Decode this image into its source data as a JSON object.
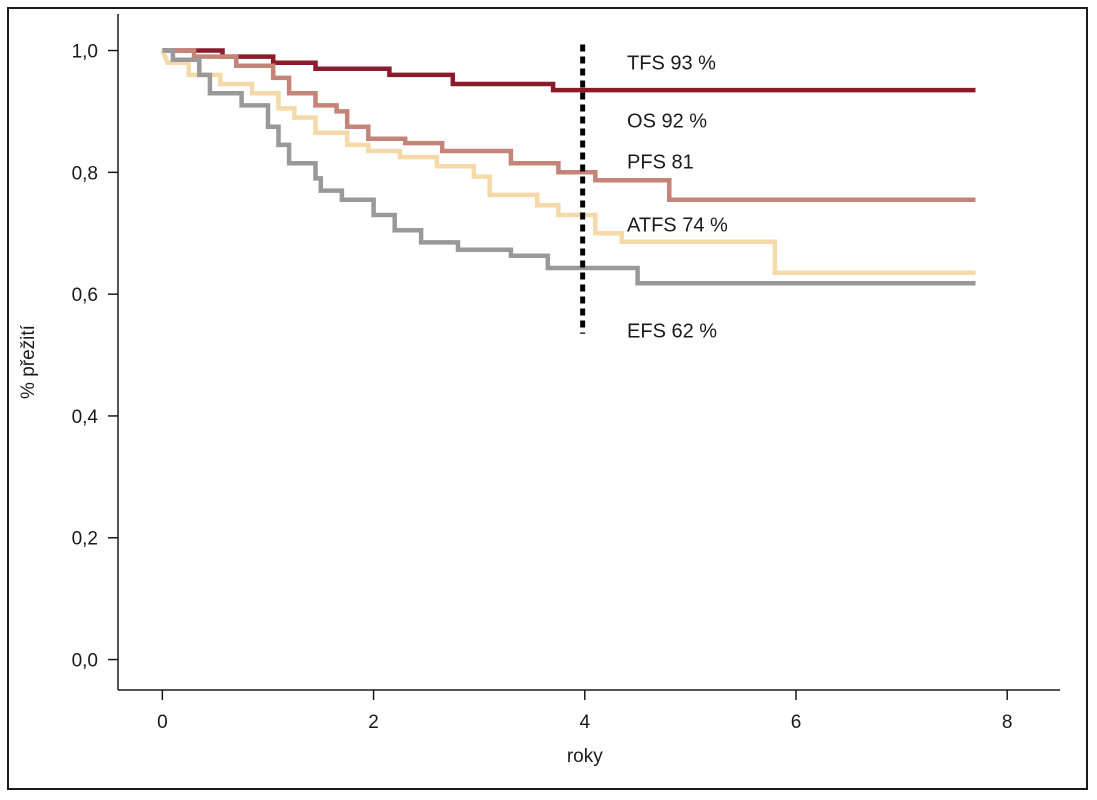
{
  "chart_data": {
    "type": "line",
    "step": true,
    "xlabel": "roky",
    "ylabel": "% přežití",
    "xlim": [
      -0.42,
      8.5
    ],
    "ylim": [
      -0.05,
      1.06
    ],
    "x_ticks": [
      0,
      2,
      4,
      6,
      8
    ],
    "y_ticks": [
      0.0,
      0.2,
      0.4,
      0.6,
      0.8,
      1.0
    ],
    "x_tick_labels": [
      "0",
      "2",
      "4",
      "6",
      "8"
    ],
    "y_tick_labels": [
      "0,0",
      "0,2",
      "0,4",
      "0,6",
      "0,8",
      "1,0"
    ],
    "reference_line": {
      "x": 3.98,
      "y_from": 0.535,
      "y_to": 1.01,
      "style": "dotted",
      "color": "#000000"
    },
    "series": [
      {
        "label": "TFS 93 %",
        "color": "#8B1A2B",
        "label_pos": [
          4.4,
          0.98
        ],
        "points": [
          [
            0,
            1.0
          ],
          [
            0.57,
            1.0
          ],
          [
            0.57,
            0.99
          ],
          [
            1.05,
            0.99
          ],
          [
            1.05,
            0.98
          ],
          [
            1.45,
            0.98
          ],
          [
            1.45,
            0.97
          ],
          [
            2.15,
            0.97
          ],
          [
            2.15,
            0.96
          ],
          [
            2.75,
            0.96
          ],
          [
            2.75,
            0.945
          ],
          [
            3.7,
            0.945
          ],
          [
            3.7,
            0.935
          ],
          [
            7.7,
            0.935
          ]
        ]
      },
      {
        "label": "OS 92 %",
        "color": "#8B1A2B",
        "label_pos": [
          4.4,
          0.885
        ],
        "points": []
      },
      {
        "label": "PFS 81",
        "color": "#C48478",
        "label_pos": [
          4.4,
          0.818
        ],
        "points": [
          [
            0,
            1.0
          ],
          [
            0.3,
            1.0
          ],
          [
            0.3,
            0.99
          ],
          [
            0.7,
            0.99
          ],
          [
            0.7,
            0.975
          ],
          [
            1.05,
            0.975
          ],
          [
            1.05,
            0.955
          ],
          [
            1.2,
            0.955
          ],
          [
            1.2,
            0.93
          ],
          [
            1.45,
            0.93
          ],
          [
            1.45,
            0.91
          ],
          [
            1.65,
            0.91
          ],
          [
            1.65,
            0.9
          ],
          [
            1.75,
            0.9
          ],
          [
            1.75,
            0.875
          ],
          [
            1.95,
            0.875
          ],
          [
            1.95,
            0.855
          ],
          [
            2.3,
            0.855
          ],
          [
            2.3,
            0.848
          ],
          [
            2.65,
            0.848
          ],
          [
            2.65,
            0.835
          ],
          [
            3.3,
            0.835
          ],
          [
            3.3,
            0.815
          ],
          [
            3.75,
            0.815
          ],
          [
            3.75,
            0.8
          ],
          [
            4.1,
            0.8
          ],
          [
            4.1,
            0.787
          ],
          [
            4.8,
            0.787
          ],
          [
            4.8,
            0.755
          ],
          [
            7.7,
            0.755
          ]
        ]
      },
      {
        "label": "ATFS 74 %",
        "color": "#F6D9A8",
        "label_pos": [
          4.4,
          0.714
        ],
        "points": [
          [
            0,
            1.0
          ],
          [
            0.05,
            0.98
          ],
          [
            0.25,
            0.98
          ],
          [
            0.25,
            0.96
          ],
          [
            0.55,
            0.96
          ],
          [
            0.55,
            0.945
          ],
          [
            0.85,
            0.945
          ],
          [
            0.85,
            0.93
          ],
          [
            1.1,
            0.93
          ],
          [
            1.1,
            0.905
          ],
          [
            1.25,
            0.905
          ],
          [
            1.25,
            0.89
          ],
          [
            1.45,
            0.89
          ],
          [
            1.45,
            0.865
          ],
          [
            1.75,
            0.865
          ],
          [
            1.75,
            0.845
          ],
          [
            1.95,
            0.845
          ],
          [
            1.95,
            0.835
          ],
          [
            2.25,
            0.835
          ],
          [
            2.25,
            0.825
          ],
          [
            2.6,
            0.825
          ],
          [
            2.6,
            0.81
          ],
          [
            2.95,
            0.81
          ],
          [
            2.95,
            0.793
          ],
          [
            3.1,
            0.793
          ],
          [
            3.1,
            0.763
          ],
          [
            3.55,
            0.763
          ],
          [
            3.55,
            0.746
          ],
          [
            3.75,
            0.746
          ],
          [
            3.75,
            0.73
          ],
          [
            4.1,
            0.73
          ],
          [
            4.1,
            0.7
          ],
          [
            4.35,
            0.7
          ],
          [
            4.35,
            0.686
          ],
          [
            5.8,
            0.686
          ],
          [
            5.8,
            0.635
          ],
          [
            7.7,
            0.635
          ]
        ]
      },
      {
        "label": "EFS 62 %",
        "color": "#999999",
        "label_pos": [
          4.4,
          0.54
        ],
        "points": [
          [
            0,
            1.0
          ],
          [
            0.1,
            1.0
          ],
          [
            0.1,
            0.985
          ],
          [
            0.35,
            0.985
          ],
          [
            0.35,
            0.96
          ],
          [
            0.45,
            0.96
          ],
          [
            0.45,
            0.93
          ],
          [
            0.75,
            0.93
          ],
          [
            0.75,
            0.91
          ],
          [
            1.0,
            0.91
          ],
          [
            1.0,
            0.875
          ],
          [
            1.1,
            0.875
          ],
          [
            1.1,
            0.845
          ],
          [
            1.2,
            0.845
          ],
          [
            1.2,
            0.815
          ],
          [
            1.45,
            0.815
          ],
          [
            1.45,
            0.79
          ],
          [
            1.5,
            0.79
          ],
          [
            1.5,
            0.77
          ],
          [
            1.7,
            0.77
          ],
          [
            1.7,
            0.755
          ],
          [
            2.0,
            0.755
          ],
          [
            2.0,
            0.73
          ],
          [
            2.2,
            0.73
          ],
          [
            2.2,
            0.705
          ],
          [
            2.45,
            0.705
          ],
          [
            2.45,
            0.685
          ],
          [
            2.8,
            0.685
          ],
          [
            2.8,
            0.673
          ],
          [
            3.3,
            0.673
          ],
          [
            3.3,
            0.663
          ],
          [
            3.65,
            0.663
          ],
          [
            3.65,
            0.643
          ],
          [
            4.5,
            0.643
          ],
          [
            4.5,
            0.618
          ],
          [
            7.7,
            0.618
          ]
        ]
      }
    ]
  }
}
